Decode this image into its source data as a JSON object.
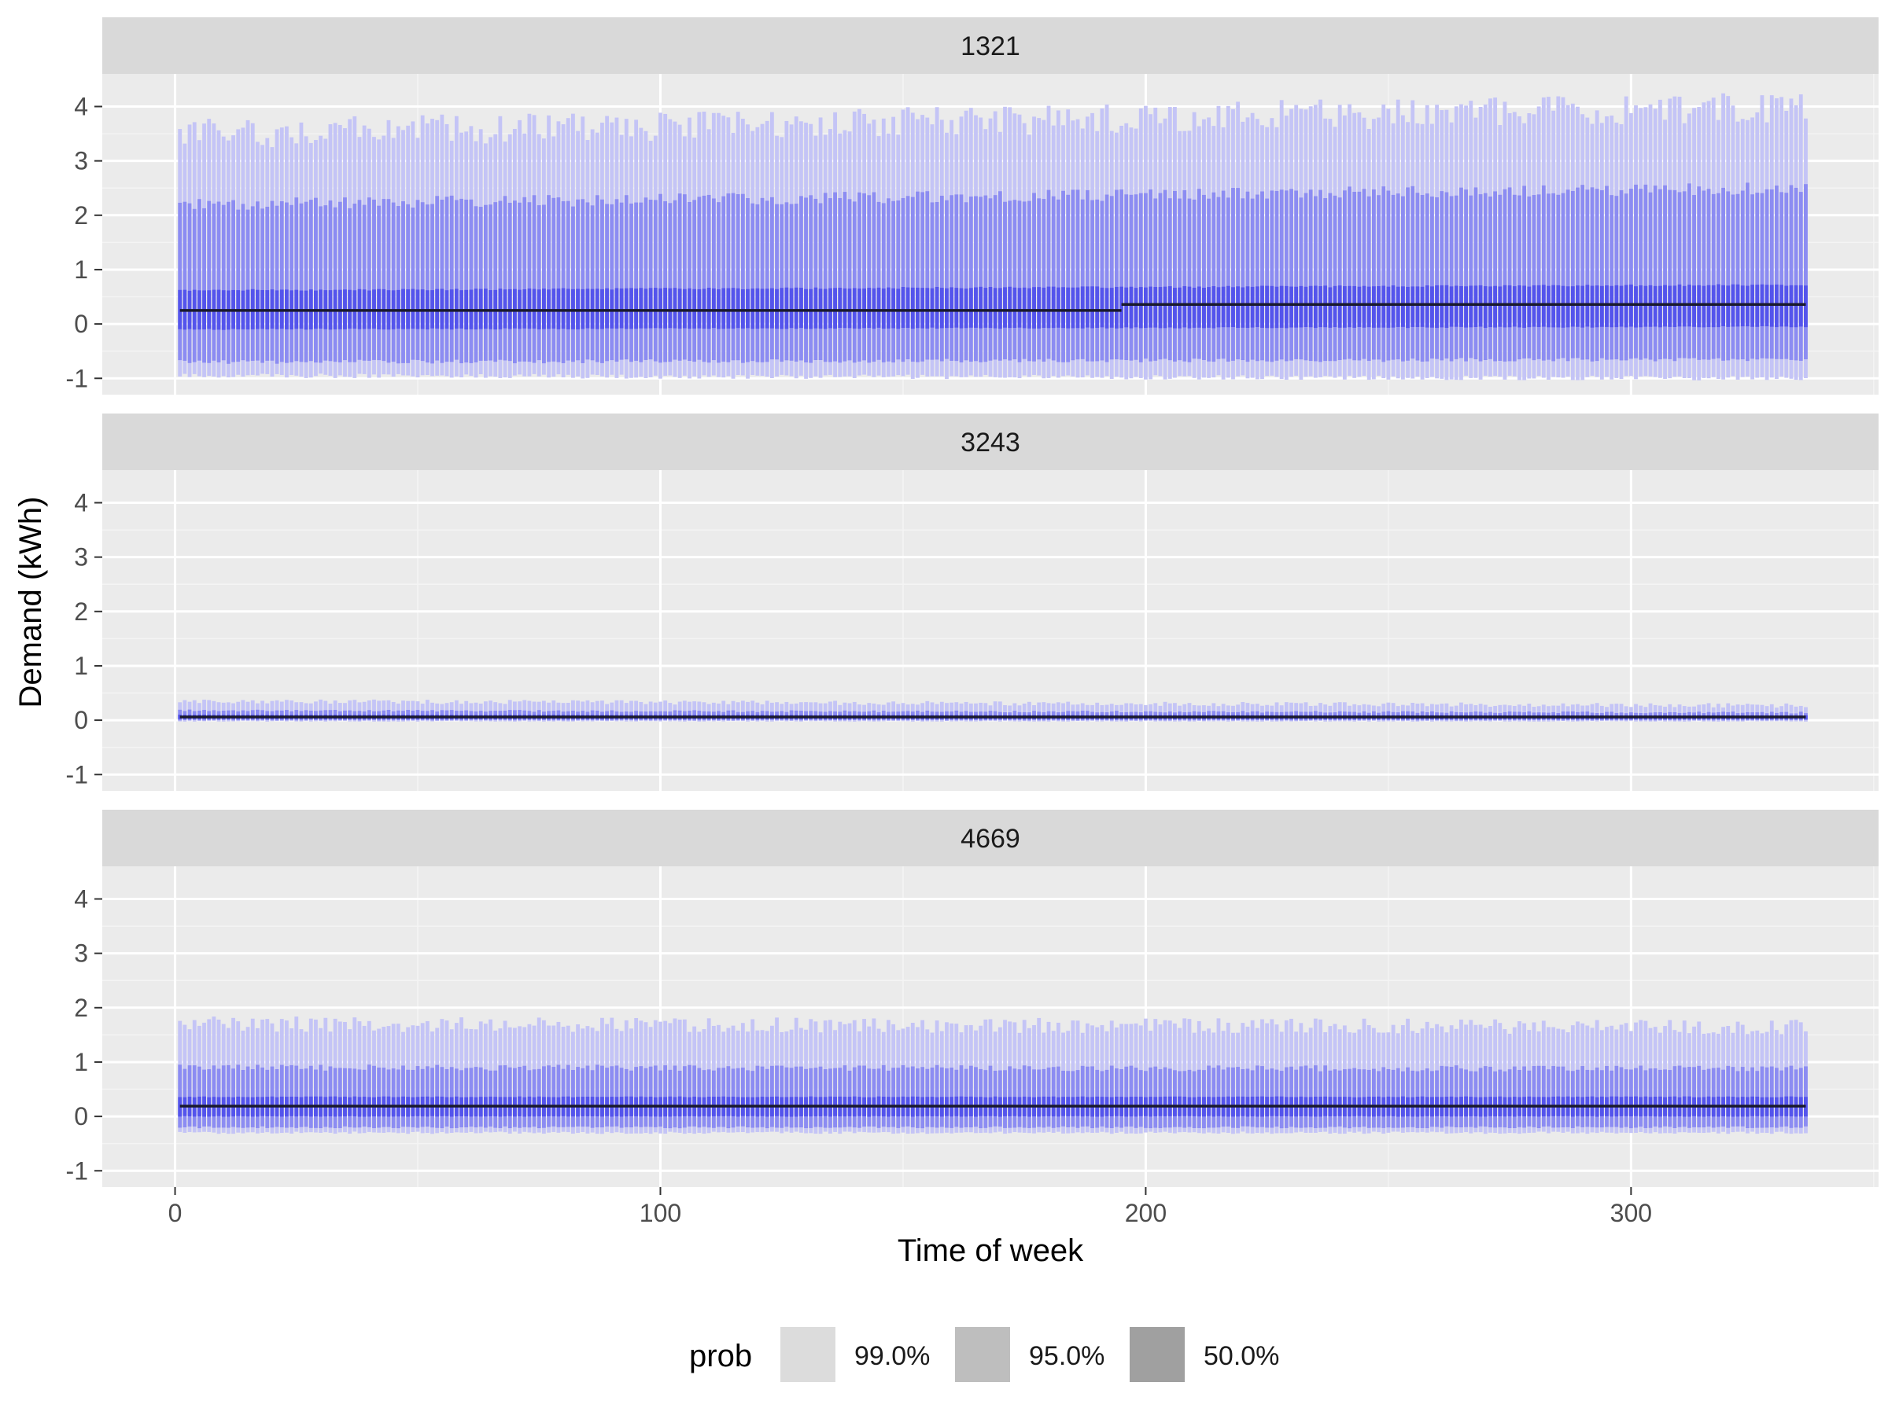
{
  "chart_data": {
    "type": "bar",
    "subtype": "faceted interval forecast (quantile bands per half-hour) with mean line",
    "xlabel": "Time of week",
    "ylabel": "Demand (kWh)",
    "xlim": [
      -15,
      351
    ],
    "ylim": [
      -1.3,
      4.6
    ],
    "x_ticks": [
      0,
      100,
      200,
      300
    ],
    "x_tick_labels": [
      "0",
      "100",
      "200",
      "300"
    ],
    "y_ticks": [
      -1,
      0,
      1,
      2,
      3,
      4
    ],
    "y_tick_labels": [
      "-1",
      "0",
      "1",
      "2",
      "3",
      "4"
    ],
    "x_range": [
      1,
      336
    ],
    "grid": true,
    "legend": {
      "position": "bottom",
      "title": "prob",
      "entries": [
        {
          "label": "99.0%",
          "color": "#dcdcdc"
        },
        {
          "label": "95.0%",
          "color": "#bebebe"
        },
        {
          "label": "50.0%",
          "color": "#a0a0a0"
        }
      ]
    },
    "colors": {
      "band_99": "#c4c4f6",
      "band_95": "#8c8cf2",
      "band_50": "#5454ec",
      "mean_line": "#1a1a2e",
      "panel_bg": "#ebebeb",
      "strip_bg": "#d9d9d9"
    },
    "facets": [
      {
        "strip": "1321",
        "mean_segments": [
          {
            "x": [
              1,
              195
            ],
            "y": 0.25
          },
          {
            "x": [
              195,
              336
            ],
            "y": 0.36
          }
        ],
        "band_99": {
          "lower": [
            -0.95,
            -1.0
          ],
          "upper": [
            3.5,
            4.0
          ]
        },
        "band_95": {
          "lower": [
            -0.7,
            -0.65
          ],
          "upper": [
            2.2,
            2.5
          ]
        },
        "band_50": {
          "lower": [
            -0.1,
            -0.05
          ],
          "upper": [
            0.62,
            0.72
          ]
        }
      },
      {
        "strip": "3243",
        "mean_segments": [
          {
            "x": [
              1,
              336
            ],
            "y": 0.06
          }
        ],
        "band_99": {
          "lower": [
            -0.02,
            -0.02
          ],
          "upper": [
            0.35,
            0.27
          ]
        },
        "band_95": {
          "lower": [
            0.0,
            0.0
          ],
          "upper": [
            0.18,
            0.14
          ]
        },
        "band_50": {
          "lower": [
            0.02,
            0.02
          ],
          "upper": [
            0.1,
            0.09
          ]
        }
      },
      {
        "strip": "4669",
        "mean_segments": [
          {
            "x": [
              1,
              336
            ],
            "y": 0.19
          }
        ],
        "band_99": {
          "lower": [
            -0.3,
            -0.3
          ],
          "upper": [
            1.7,
            1.65
          ]
        },
        "band_95": {
          "lower": [
            -0.2,
            -0.2
          ],
          "upper": [
            0.9,
            0.88
          ]
        },
        "band_50": {
          "lower": [
            0.0,
            0.0
          ],
          "upper": [
            0.36,
            0.36
          ]
        }
      }
    ]
  }
}
